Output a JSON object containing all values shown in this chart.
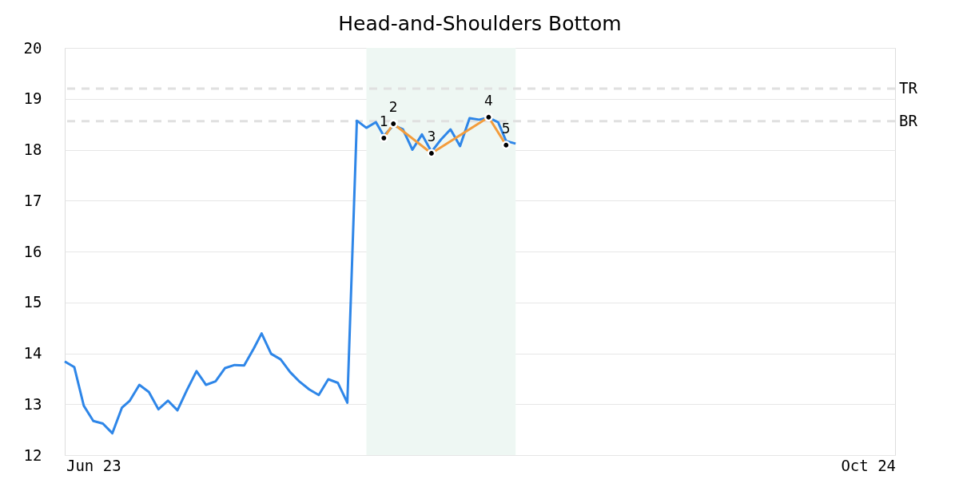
{
  "chart_data": {
    "type": "line",
    "title": "Head-and-Shoulders Bottom",
    "xlim": [
      "2023-05-14",
      "2024-10-18"
    ],
    "xticks": [
      {
        "value": "2023-06-01",
        "label": "Jun 23"
      },
      {
        "value": "2024-10-01",
        "label": "Oct 24"
      }
    ],
    "ylim": [
      12,
      20
    ],
    "yticks": [
      12,
      13,
      14,
      15,
      16,
      17,
      18,
      19,
      20
    ],
    "grid": "y",
    "series": [
      {
        "color": "#2e86e8",
        "marker": "none",
        "x": [
          "2023-05-14",
          "2023-05-20",
          "2023-05-26",
          "2023-06-01",
          "2023-06-07",
          "2023-06-13",
          "2023-06-19",
          "2023-06-24",
          "2023-06-30",
          "2023-07-06",
          "2023-07-12",
          "2023-07-18",
          "2023-07-24",
          "2023-07-30",
          "2023-08-05",
          "2023-08-11",
          "2023-08-17",
          "2023-08-23",
          "2023-08-29",
          "2023-09-04",
          "2023-09-10",
          "2023-09-15",
          "2023-09-21",
          "2023-09-27",
          "2023-10-03",
          "2023-10-09",
          "2023-10-15",
          "2023-10-21",
          "2023-10-27",
          "2023-11-02",
          "2023-11-08",
          "2023-11-14",
          "2023-11-20",
          "2023-11-26",
          "2023-12-01",
          "2023-12-07",
          "2023-12-13",
          "2023-12-19",
          "2023-12-25",
          "2023-12-31",
          "2024-01-06",
          "2024-01-12",
          "2024-01-18",
          "2024-01-24",
          "2024-01-30",
          "2024-02-05",
          "2024-02-11",
          "2024-02-16",
          "2024-02-22"
        ],
        "values": [
          13.84,
          13.73,
          12.97,
          12.67,
          12.62,
          12.43,
          12.93,
          13.07,
          13.38,
          13.24,
          12.9,
          13.07,
          12.88,
          13.28,
          13.65,
          13.38,
          13.45,
          13.71,
          13.77,
          13.76,
          14.09,
          14.39,
          13.99,
          13.88,
          13.63,
          13.44,
          13.29,
          13.18,
          13.49,
          13.42,
          13.03,
          18.57,
          18.43,
          18.54,
          18.27,
          18.48,
          18.4,
          18.0,
          18.3,
          17.96,
          18.2,
          18.4,
          18.07,
          18.62,
          18.59,
          18.63,
          18.54,
          18.17,
          18.12
        ]
      },
      {
        "color": "#f39c3c",
        "marker": "none",
        "x": [
          "2023-12-01",
          "2023-12-07",
          "2023-12-31",
          "2024-02-05",
          "2024-02-16"
        ],
        "values": [
          18.23,
          18.51,
          17.93,
          18.64,
          18.09
        ]
      },
      {
        "type": "scatter",
        "color": "#000000",
        "marker": "circle",
        "x": [
          "2023-12-01",
          "2023-12-07",
          "2023-12-31",
          "2024-02-05",
          "2024-02-16"
        ],
        "values": [
          18.23,
          18.51,
          17.93,
          18.64,
          18.09
        ]
      }
    ],
    "ref_lines": [
      {
        "axis": "y",
        "value": 19.2,
        "label": "TR",
        "color": "#e0e0e0",
        "line_style": "dashed"
      },
      {
        "axis": "y",
        "value": 18.56,
        "label": "BR",
        "color": "#e0e0e0",
        "line_style": "dashed"
      }
    ],
    "bands": [
      {
        "axis": "x",
        "from": "2023-11-20",
        "to": "2024-02-22",
        "color": "#eef7f3"
      }
    ],
    "annotations": [
      {
        "text": "1",
        "x": "2023-12-01",
        "y": 18.23
      },
      {
        "text": "2",
        "x": "2023-12-07",
        "y": 18.51
      },
      {
        "text": "3",
        "x": "2023-12-31",
        "y": 17.93
      },
      {
        "text": "4",
        "x": "2024-02-05",
        "y": 18.64
      },
      {
        "text": "5",
        "x": "2024-02-16",
        "y": 18.09
      }
    ]
  }
}
